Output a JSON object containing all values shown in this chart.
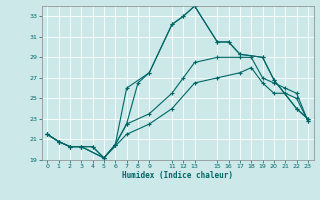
{
  "xlabel": "Humidex (Indice chaleur)",
  "bg_color": "#cce8e8",
  "grid_color": "#b8d8d8",
  "line_color": "#006666",
  "ylim": [
    19,
    34
  ],
  "xlim": [
    -0.5,
    23.5
  ],
  "yticks": [
    19,
    21,
    23,
    25,
    27,
    29,
    31,
    33
  ],
  "xticks": [
    0,
    1,
    2,
    3,
    4,
    5,
    6,
    7,
    8,
    9,
    11,
    12,
    13,
    15,
    16,
    17,
    18,
    19,
    20,
    21,
    22,
    23
  ],
  "line1_x": [
    0,
    1,
    2,
    3,
    4,
    5,
    6,
    7,
    9,
    11,
    12,
    13,
    15,
    16,
    17,
    19,
    20,
    22,
    23
  ],
  "line1_y": [
    21.5,
    20.8,
    20.3,
    20.3,
    20.3,
    19.2,
    20.5,
    26.0,
    27.5,
    32.2,
    33.0,
    34.0,
    30.5,
    30.5,
    29.3,
    29.0,
    26.8,
    24.0,
    23.0
  ],
  "line2_x": [
    0,
    1,
    2,
    3,
    4,
    5,
    6,
    7,
    8,
    9,
    11,
    12,
    13,
    15,
    16,
    17,
    19,
    20,
    22,
    23
  ],
  "line2_y": [
    21.5,
    20.8,
    20.3,
    20.3,
    20.3,
    19.2,
    20.5,
    22.5,
    26.5,
    27.5,
    32.2,
    33.0,
    34.0,
    30.5,
    30.5,
    29.3,
    29.0,
    26.8,
    24.0,
    23.0
  ],
  "line3_x": [
    0,
    1,
    2,
    3,
    5,
    6,
    7,
    9,
    11,
    12,
    13,
    15,
    17,
    18,
    19,
    20,
    21,
    22,
    23
  ],
  "line3_y": [
    21.5,
    20.8,
    20.3,
    20.3,
    19.2,
    20.5,
    22.5,
    23.5,
    25.5,
    27.0,
    28.5,
    29.0,
    29.0,
    29.0,
    27.0,
    26.5,
    26.0,
    25.5,
    22.8
  ],
  "line4_x": [
    0,
    1,
    2,
    3,
    5,
    7,
    9,
    11,
    13,
    15,
    17,
    18,
    19,
    20,
    21,
    22,
    23
  ],
  "line4_y": [
    21.5,
    20.8,
    20.3,
    20.3,
    19.2,
    21.5,
    22.5,
    24.0,
    26.5,
    27.0,
    27.5,
    28.0,
    26.5,
    25.5,
    25.5,
    25.0,
    22.8
  ]
}
